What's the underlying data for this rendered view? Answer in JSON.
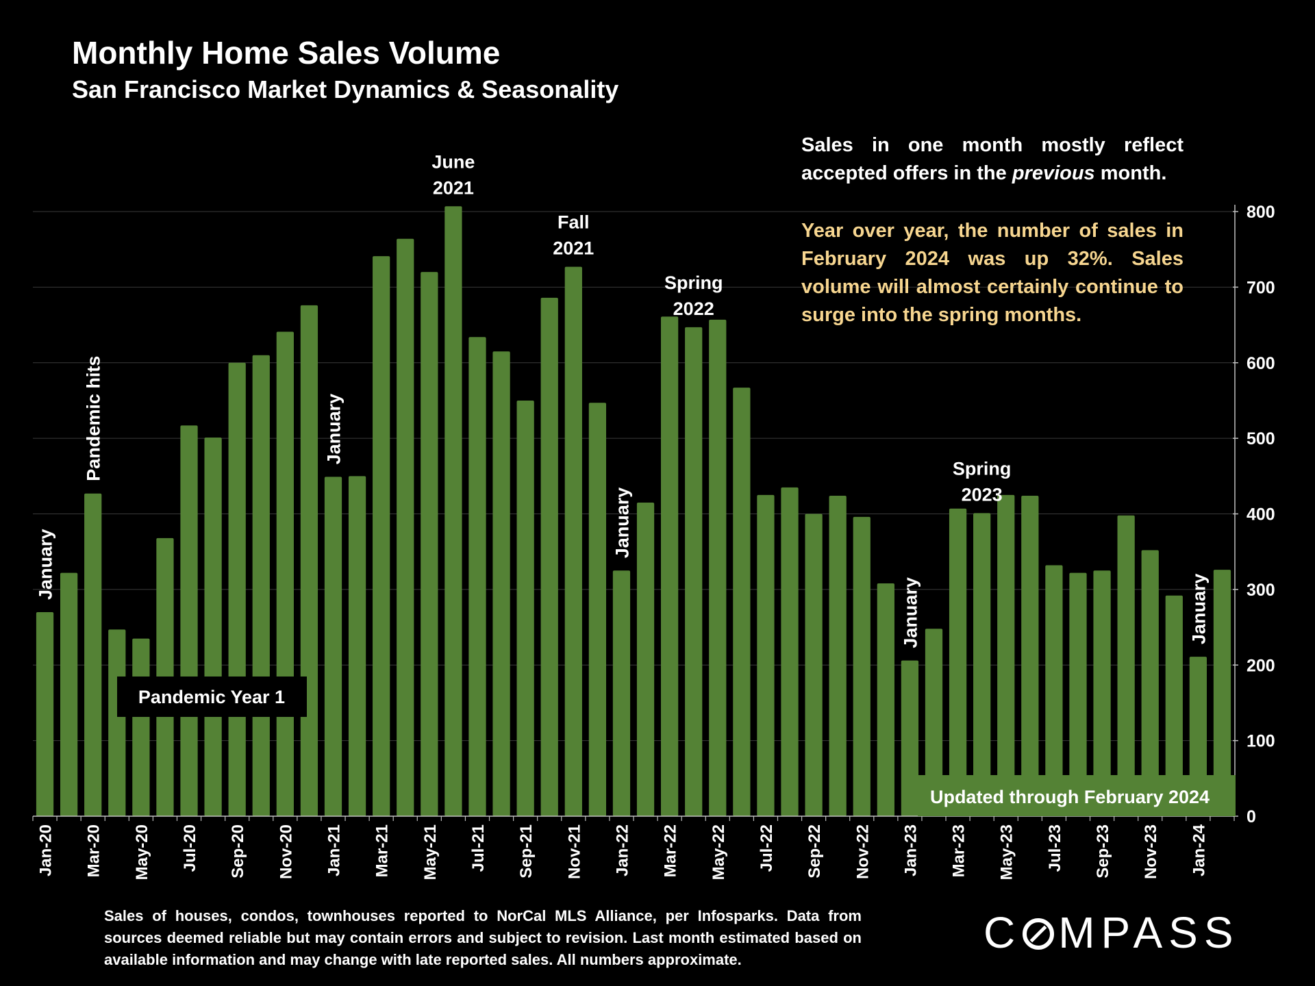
{
  "chart_data": {
    "type": "bar",
    "title": "Monthly Home Sales Volume",
    "subtitle": "San Francisco Market Dynamics & Seasonality",
    "ylim": [
      0,
      800
    ],
    "yticks": [
      0,
      100,
      200,
      300,
      400,
      500,
      600,
      700,
      800
    ],
    "y_axis_side": "right",
    "grid": true,
    "bar_color": "#548235",
    "categories": [
      "Jan-20",
      "Feb-20",
      "Mar-20",
      "Apr-20",
      "May-20",
      "Jun-20",
      "Jul-20",
      "Aug-20",
      "Sep-20",
      "Oct-20",
      "Nov-20",
      "Dec-20",
      "Jan-21",
      "Feb-21",
      "Mar-21",
      "Apr-21",
      "May-21",
      "Jun-21",
      "Jul-21",
      "Aug-21",
      "Sep-21",
      "Oct-21",
      "Nov-21",
      "Dec-21",
      "Jan-22",
      "Feb-22",
      "Mar-22",
      "Apr-22",
      "May-22",
      "Jun-22",
      "Jul-22",
      "Aug-22",
      "Sep-22",
      "Oct-22",
      "Nov-22",
      "Dec-22",
      "Jan-23",
      "Feb-23",
      "Mar-23",
      "Apr-23",
      "May-23",
      "Jun-23",
      "Jul-23",
      "Aug-23",
      "Sep-23",
      "Oct-23",
      "Nov-23",
      "Dec-23",
      "Jan-24",
      "Feb-24"
    ],
    "tick_labels": [
      "Jan-20",
      "Mar-20",
      "May-20",
      "Jul-20",
      "Sep-20",
      "Nov-20",
      "Jan-21",
      "Mar-21",
      "May-21",
      "Jul-21",
      "Sep-21",
      "Nov-21",
      "Jan-22",
      "Mar-22",
      "May-22",
      "Jul-22",
      "Sep-22",
      "Nov-22",
      "Jan-23",
      "Mar-23",
      "May-23",
      "Jul-23",
      "Sep-23",
      "Nov-23",
      "Jan-24"
    ],
    "values": [
      270,
      322,
      427,
      247,
      235,
      368,
      517,
      501,
      600,
      610,
      641,
      676,
      449,
      450,
      741,
      764,
      720,
      807,
      634,
      615,
      550,
      686,
      727,
      547,
      325,
      415,
      661,
      647,
      657,
      567,
      425,
      435,
      400,
      424,
      396,
      308,
      206,
      248,
      407,
      401,
      425,
      424,
      332,
      322,
      325,
      398,
      352,
      292,
      211,
      326
    ],
    "annotations": [
      {
        "label": "January",
        "category": "Jan-20",
        "vertical": true
      },
      {
        "label": "Pandemic hits",
        "category": "Mar-20",
        "vertical": true
      },
      {
        "label": "January",
        "category": "Jan-21",
        "vertical": true
      },
      {
        "label": "June 2021",
        "lines": [
          "June",
          "2021"
        ],
        "category": "Jun-21",
        "vertical": false
      },
      {
        "label": "Fall 2021",
        "lines": [
          "Fall",
          "2021"
        ],
        "category": "Nov-21",
        "vertical": false
      },
      {
        "label": "January",
        "category": "Jan-22",
        "vertical": true
      },
      {
        "label": "Spring 2022",
        "lines": [
          "Spring",
          "2022"
        ],
        "category": "Apr-22",
        "vertical": false
      },
      {
        "label": "January",
        "category": "Jan-23",
        "vertical": true
      },
      {
        "label": "Spring 2023",
        "lines": [
          "Spring",
          "2023"
        ],
        "category": "Apr-23",
        "vertical": false
      },
      {
        "label": "January",
        "category": "Jan-24",
        "vertical": true
      }
    ],
    "callouts": {
      "pandemic_year": "Pandemic Year 1",
      "updated": "Updated through February 2024"
    }
  },
  "notes": {
    "note1_pre": "Sales in one month mostly reflect accepted offers in the ",
    "note1_em": "previous",
    "note1_post": " month.",
    "note2": "Year over year, the number of sales in February 2024 was up 32%. Sales volume will almost certainly continue to surge into the spring months."
  },
  "footer": "Sales of houses, condos, townhouses reported to NorCal MLS Alliance, per Infosparks. Data from sources deemed reliable but may contain errors and subject to revision. Last month estimated based on available information and may change with late reported sales. All numbers approximate.",
  "logo": {
    "pre": "C",
    "post": "MPASS",
    "icon": "compass-o-icon"
  },
  "colors": {
    "background": "#000000",
    "bar": "#548235",
    "highlight_text": "#f7d690",
    "grid": "#3a3a3a"
  }
}
